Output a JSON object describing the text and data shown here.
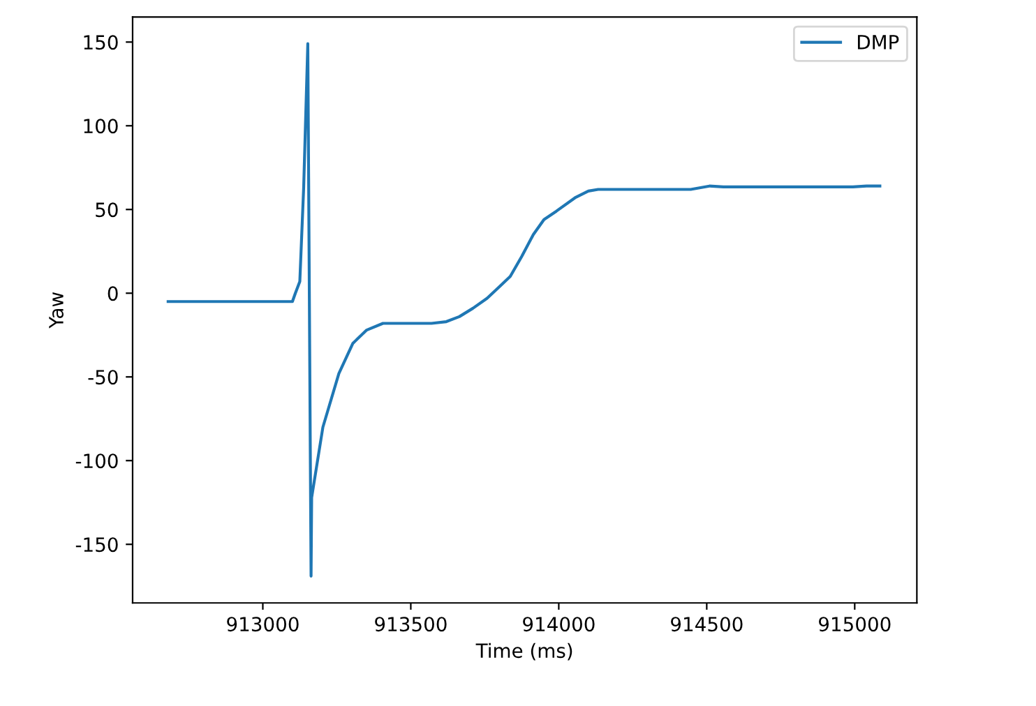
{
  "chart_data": {
    "type": "line",
    "xlabel": "Time (ms)",
    "ylabel": "Yaw",
    "xlim": [
      912560,
      915210
    ],
    "ylim": [
      -185,
      165
    ],
    "xticks": [
      913000,
      913500,
      914000,
      914500,
      915000
    ],
    "yticks": [
      -150,
      -100,
      -50,
      0,
      50,
      100,
      150
    ],
    "grid": false,
    "legend": "top right",
    "series": [
      {
        "name": "DMP",
        "color": "#1f77b4",
        "x": [
          912680,
          912900,
          913100,
          913110,
          913125,
          913138,
          913152,
          913163,
          913165,
          913203,
          913257,
          913304,
          913351,
          913406,
          913476,
          913570,
          913620,
          913664,
          913710,
          913758,
          913800,
          913836,
          913875,
          913914,
          913950,
          913992,
          914055,
          914100,
          914133,
          914300,
          914446,
          914509,
          914556,
          914800,
          914994,
          915040,
          915085
        ],
        "values": [
          -5,
          -5,
          -5,
          0,
          7,
          63,
          149,
          -169,
          -122,
          -80,
          -48,
          -30,
          -22,
          -18,
          -18,
          -18,
          -17,
          -14,
          -9,
          -3,
          4,
          10,
          22,
          35,
          44,
          49,
          57,
          61,
          62,
          62,
          62,
          64,
          63.5,
          63.5,
          63.5,
          64,
          64
        ]
      }
    ]
  }
}
